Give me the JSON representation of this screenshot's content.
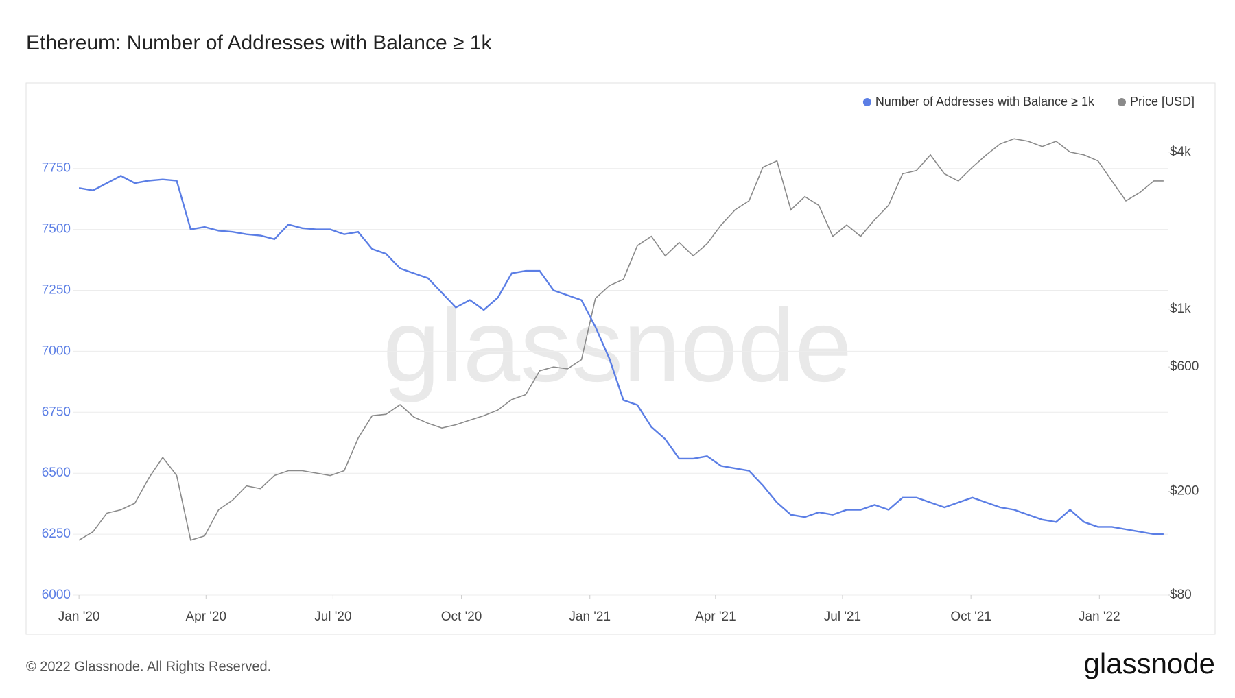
{
  "chart_data": {
    "type": "line",
    "title": "Ethereum: Number of Addresses with Balance ≥ 1k",
    "watermark": "glassnode",
    "x": [
      0,
      10,
      20,
      30,
      40,
      50,
      60,
      70,
      80,
      90,
      100,
      110,
      120,
      130,
      140,
      150,
      160,
      170,
      180,
      190,
      200,
      210,
      220,
      230,
      240,
      250,
      260,
      270,
      280,
      290,
      300,
      310,
      320,
      330,
      340,
      350,
      360,
      370,
      380,
      390,
      400,
      410,
      420,
      430,
      440,
      450,
      460,
      470,
      480,
      490,
      500,
      510,
      520,
      530,
      540,
      550,
      560,
      570,
      580,
      590,
      600,
      610,
      620,
      630,
      640,
      650,
      660,
      670,
      680,
      690,
      700,
      710,
      720,
      730,
      740,
      750,
      760,
      770,
      777
    ],
    "xlim": [
      -4,
      780
    ],
    "xticks": [
      {
        "value": 0,
        "label": "Jan '20"
      },
      {
        "value": 91,
        "label": "Apr '20"
      },
      {
        "value": 182,
        "label": "Jul '20"
      },
      {
        "value": 274,
        "label": "Oct '20"
      },
      {
        "value": 366,
        "label": "Jan '21"
      },
      {
        "value": 456,
        "label": "Apr '21"
      },
      {
        "value": 547,
        "label": "Jul '21"
      },
      {
        "value": 639,
        "label": "Oct '21"
      },
      {
        "value": 731,
        "label": "Jan '22"
      }
    ],
    "ylim": [
      6000,
      7977
    ],
    "yticks": [
      6000,
      6250,
      6500,
      6750,
      7000,
      7250,
      7500,
      7750
    ],
    "y2lim": [
      80,
      5640
    ],
    "y2_log": true,
    "y2ticks": [
      {
        "value": 80,
        "label": "$80"
      },
      {
        "value": 200,
        "label": "$200"
      },
      {
        "value": 600,
        "label": "$600"
      },
      {
        "value": 1000,
        "label": "$1k"
      },
      {
        "value": 4000,
        "label": "$4k"
      }
    ],
    "grid": true,
    "legend": "top-right",
    "series": [
      {
        "name": "Number of Addresses with Balance ≥ 1k",
        "color": "#5b7ee5",
        "axis": "y",
        "values": [
          7670,
          7660,
          7690,
          7720,
          7690,
          7700,
          7705,
          7700,
          7500,
          7510,
          7495,
          7490,
          7480,
          7475,
          7460,
          7520,
          7505,
          7500,
          7500,
          7480,
          7490,
          7420,
          7400,
          7340,
          7320,
          7300,
          7240,
          7180,
          7210,
          7170,
          7220,
          7320,
          7330,
          7330,
          7250,
          7230,
          7210,
          7100,
          6970,
          6800,
          6780,
          6690,
          6640,
          6560,
          6560,
          6570,
          6530,
          6520,
          6510,
          6450,
          6380,
          6330,
          6320,
          6340,
          6330,
          6350,
          6350,
          6370,
          6350,
          6400,
          6400,
          6380,
          6360,
          6380,
          6400,
          6380,
          6360,
          6350,
          6330,
          6310,
          6300,
          6350,
          6300,
          6280,
          6280,
          6270,
          6260,
          6250,
          6250
        ]
      },
      {
        "name": "Price [USD]",
        "color": "#8a8a8a",
        "axis": "y2",
        "values": [
          130,
          140,
          165,
          170,
          180,
          225,
          270,
          230,
          130,
          135,
          170,
          185,
          210,
          205,
          230,
          240,
          240,
          235,
          230,
          240,
          320,
          390,
          395,
          430,
          385,
          365,
          350,
          360,
          375,
          390,
          410,
          450,
          470,
          580,
          600,
          590,
          640,
          1100,
          1230,
          1300,
          1750,
          1900,
          1600,
          1800,
          1600,
          1780,
          2100,
          2400,
          2600,
          3500,
          3700,
          2400,
          2700,
          2500,
          1900,
          2100,
          1900,
          2200,
          2500,
          3300,
          3400,
          3900,
          3300,
          3100,
          3500,
          3900,
          4300,
          4500,
          4400,
          4200,
          4400,
          4000,
          3900,
          3700,
          3100,
          2600,
          2800,
          3100,
          3100
        ]
      }
    ]
  },
  "footer": "© 2022 Glassnode. All Rights Reserved.",
  "logo": "glassnode"
}
